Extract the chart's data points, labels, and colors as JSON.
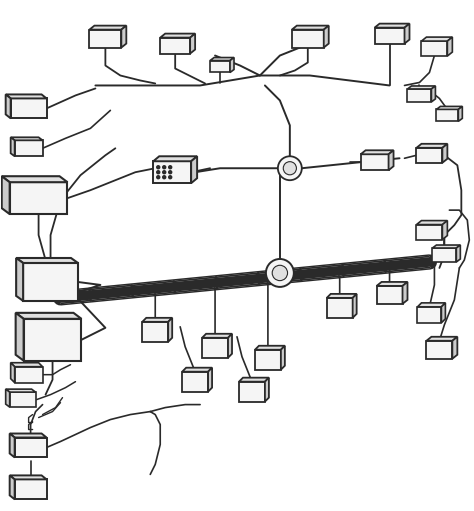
{
  "background_color": "#ffffff",
  "line_color": "#2a2a2a",
  "fill_color": "#f5f5f5",
  "fill_dark": "#e0e0e0",
  "fill_darker": "#cccccc",
  "fig_width": 4.74,
  "fig_height": 5.11,
  "dpi": 100
}
